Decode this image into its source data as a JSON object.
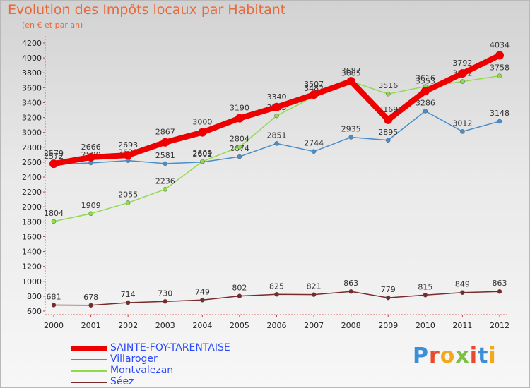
{
  "title": "Evolution des Impôts locaux par Habitant",
  "subtitle": "(en € et par an)",
  "brand": "Proxiti",
  "brand_colors": [
    "#3a8fd8",
    "#e84a2a",
    "#f2a81d",
    "#7bc043",
    "#e84a2a",
    "#3a8fd8",
    "#f2a81d"
  ],
  "chart_data": {
    "type": "line",
    "title": "Evolution des Impôts locaux par Habitant",
    "xlabel": "",
    "ylabel": "(en € et par an)",
    "categories": [
      "2000",
      "2001",
      "2002",
      "2003",
      "2004",
      "2005",
      "2006",
      "2007",
      "2008",
      "2009",
      "2010",
      "2011",
      "2012"
    ],
    "ylim": [
      600,
      4200
    ],
    "yticks": [
      600,
      800,
      1000,
      1200,
      1400,
      1600,
      1800,
      2000,
      2200,
      2400,
      2600,
      2800,
      3000,
      3200,
      3400,
      3600,
      3800,
      4000,
      4200
    ],
    "grid": false,
    "legend_position": "bottom-left",
    "series": [
      {
        "name": "SAINTE-FOY-TARENTAISE",
        "color": "#ee0000",
        "values": [
          2579,
          2666,
          2693,
          2867,
          3000,
          3190,
          3340,
          3507,
          3687,
          3169,
          3553,
          3792,
          4034
        ]
      },
      {
        "name": "Villaroger",
        "color": "#4a8ec9",
        "values": [
          2572,
          2590,
          2621,
          2581,
          2601,
          2674,
          2851,
          2744,
          2935,
          2895,
          3286,
          3012,
          3148
        ]
      },
      {
        "name": "Montvalezan",
        "color": "#8fdc4a",
        "values": [
          1804,
          1909,
          2055,
          2236,
          2609,
          2804,
          3223,
          3482,
          3685,
          3516,
          3616,
          3682,
          3758
        ]
      },
      {
        "name": "Séez",
        "color": "#7a2a2a",
        "values": [
          681,
          678,
          714,
          730,
          749,
          802,
          825,
          821,
          863,
          779,
          815,
          849,
          863
        ]
      }
    ]
  }
}
